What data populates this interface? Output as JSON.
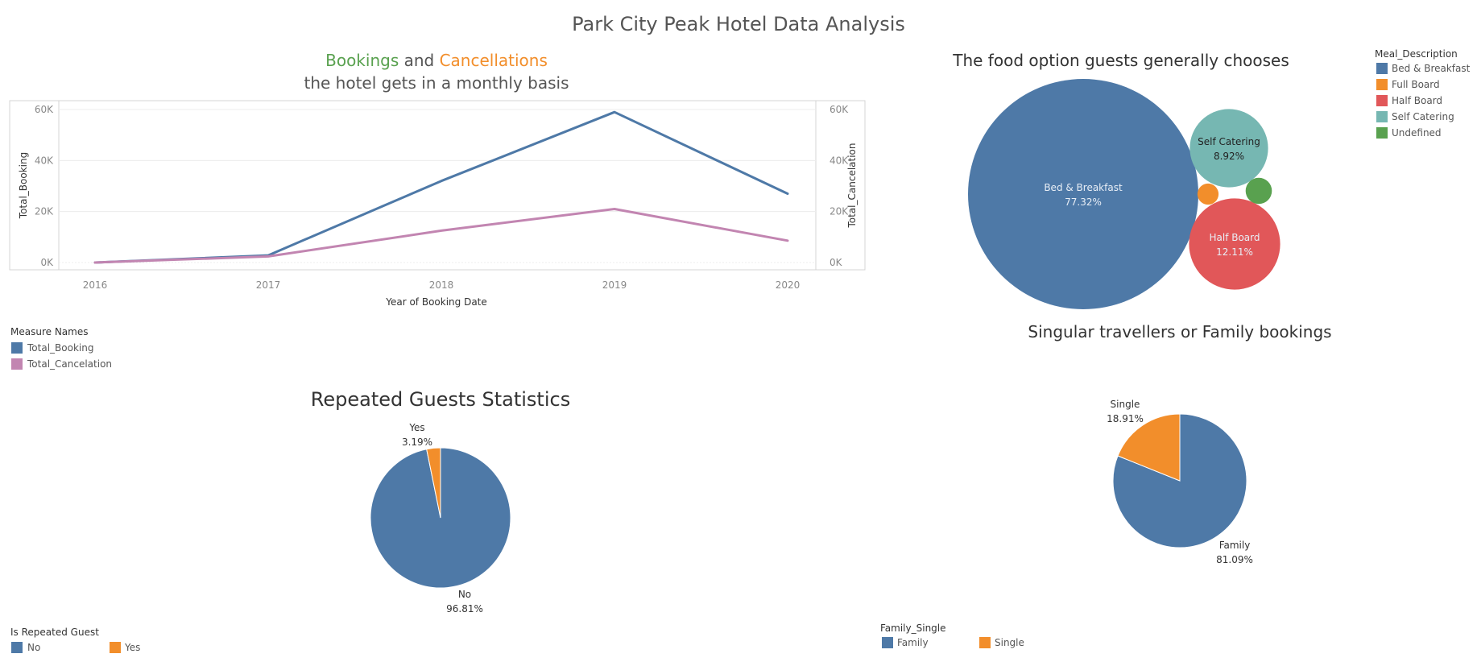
{
  "dashboard": {
    "title": "Park City Peak Hotel Data Analysis"
  },
  "colors": {
    "blue": "#4e79a7",
    "pink": "#c285b1",
    "orange": "#f28e2b",
    "red": "#e15759",
    "teal": "#76b7b2",
    "green": "#59a14f"
  },
  "chart_data": [
    {
      "id": "bookings_cancellations",
      "type": "line",
      "title_parts": [
        {
          "text": "Bookings",
          "color": "#59a14f"
        },
        {
          "text": " and ",
          "color": "#555555"
        },
        {
          "text": "Cancellations",
          "color": "#f28e2b"
        }
      ],
      "subtitle": "the hotel gets in a monthly basis",
      "x": [
        "2016",
        "2017",
        "2018",
        "2019",
        "2020"
      ],
      "xlabel": "Year of Booking Date",
      "ylabel": "Total_Booking",
      "y2label": "Total_Cancelation",
      "ylim": [
        0,
        60000
      ],
      "yticks": [
        "0K",
        "20K",
        "40K",
        "60K"
      ],
      "grid": true,
      "series": [
        {
          "name": "Total_Booking",
          "values": [
            0,
            2800,
            32000,
            59000,
            27000
          ],
          "color": "#4e79a7"
        },
        {
          "name": "Total_Cancelation",
          "values": [
            0,
            2400,
            12500,
            21000,
            8600
          ],
          "color": "#c285b1"
        }
      ],
      "legend": {
        "title": "Measure Names",
        "placement": "bottom-left",
        "items": [
          {
            "label": "Total_Booking",
            "color": "#4e79a7"
          },
          {
            "label": "Total_Cancelation",
            "color": "#c285b1"
          }
        ]
      }
    },
    {
      "id": "meal_bubbles",
      "type": "bubble",
      "title": "The food option guests generally chooses",
      "values": [
        {
          "category": "Bed & Breakfast",
          "percent": 77.32,
          "label": "Bed & Breakfast",
          "value_label": "77.32%",
          "color": "#4e79a7"
        },
        {
          "category": "Half Board",
          "percent": 12.11,
          "label": "Half Board",
          "value_label": "12.11%",
          "color": "#e15759"
        },
        {
          "category": "Self Catering",
          "percent": 8.92,
          "label": "Self Catering",
          "value_label": "8.92%",
          "color": "#76b7b2"
        },
        {
          "category": "Undefined",
          "percent": 1.0,
          "label": "",
          "value_label": "",
          "color": "#59a14f"
        },
        {
          "category": "Full Board",
          "percent": 0.65,
          "label": "",
          "value_label": "",
          "color": "#f28e2b"
        }
      ],
      "legend": {
        "title": "Meal_Description",
        "placement": "top-right",
        "items": [
          {
            "label": "Bed & Breakfast",
            "color": "#4e79a7"
          },
          {
            "label": "Full Board",
            "color": "#f28e2b"
          },
          {
            "label": "Half Board",
            "color": "#e15759"
          },
          {
            "label": "Self Catering",
            "color": "#76b7b2"
          },
          {
            "label": "Undefined",
            "color": "#59a14f"
          }
        ]
      }
    },
    {
      "id": "repeated_guests",
      "type": "pie",
      "title": "Repeated Guests Statistics",
      "slices": [
        {
          "label": "No",
          "percent": 96.81,
          "value_label": "96.81%",
          "color": "#4e79a7"
        },
        {
          "label": "Yes",
          "percent": 3.19,
          "value_label": "3.19%",
          "color": "#f28e2b"
        }
      ],
      "legend": {
        "title": "Is Repeated Guest",
        "placement": "bottom-left",
        "items": [
          {
            "label": "No",
            "color": "#4e79a7"
          },
          {
            "label": "Yes",
            "color": "#f28e2b"
          }
        ]
      }
    },
    {
      "id": "family_single",
      "type": "pie",
      "title": "Singular travellers or Family bookings",
      "slices": [
        {
          "label": "Family",
          "percent": 81.09,
          "value_label": "81.09%",
          "color": "#4e79a7"
        },
        {
          "label": "Single",
          "percent": 18.91,
          "value_label": "18.91%",
          "color": "#f28e2b"
        }
      ],
      "legend": {
        "title": "Family_Single",
        "placement": "bottom-left",
        "items": [
          {
            "label": "Family",
            "color": "#4e79a7"
          },
          {
            "label": "Single",
            "color": "#f28e2b"
          }
        ]
      }
    }
  ]
}
